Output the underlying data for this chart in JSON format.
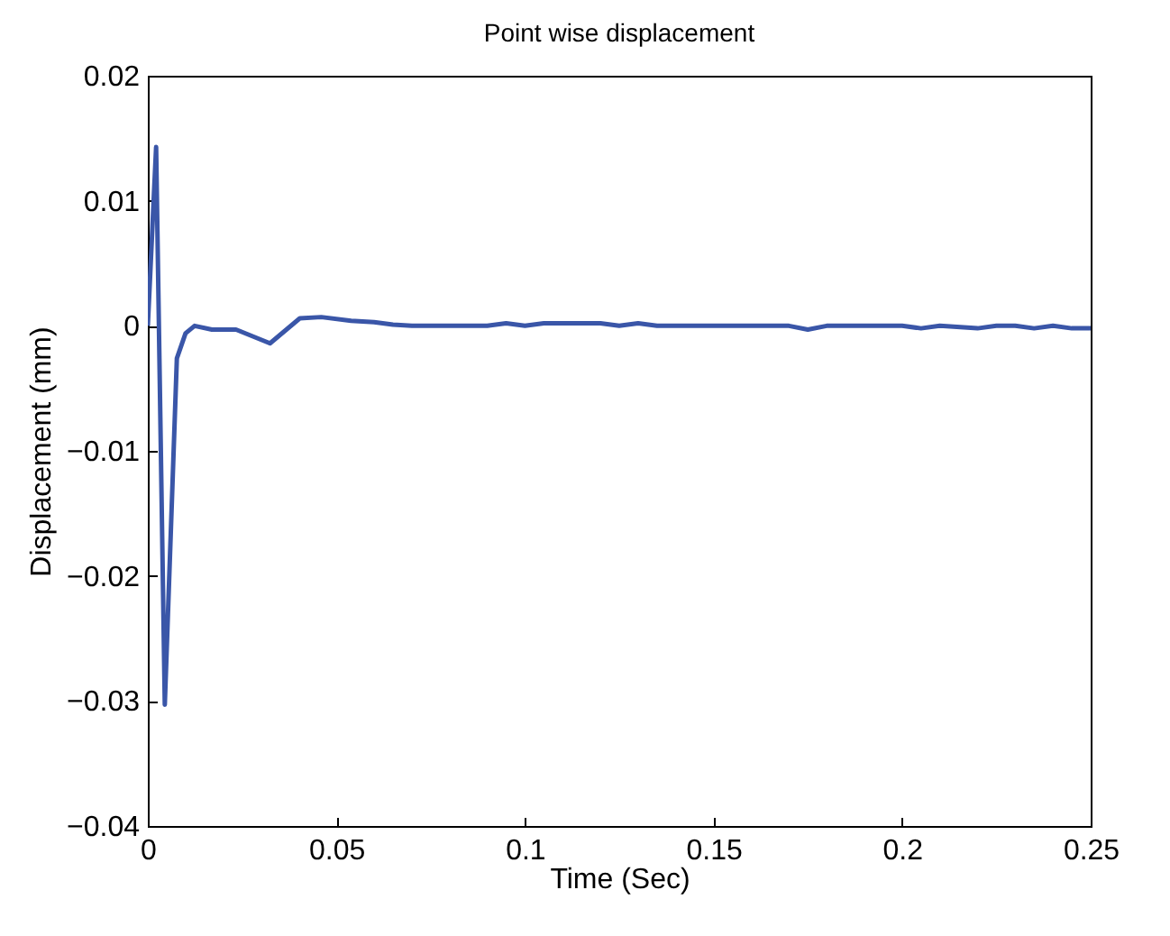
{
  "chart_data": {
    "type": "line",
    "title": "Point wise displacement",
    "xlabel": "Time (Sec)",
    "ylabel": "Displacement  (mm)",
    "x": [
      0,
      0.0022,
      0.0045,
      0.0077,
      0.01,
      0.0124,
      0.017,
      0.0234,
      0.0324,
      0.0403,
      0.046,
      0.0539,
      0.06,
      0.065,
      0.07,
      0.09,
      0.095,
      0.1,
      0.105,
      0.11,
      0.12,
      0.125,
      0.13,
      0.135,
      0.14,
      0.15,
      0.17,
      0.175,
      0.18,
      0.19,
      0.2,
      0.205,
      0.21,
      0.22,
      0.225,
      0.23,
      0.235,
      0.24,
      0.245,
      0.25
    ],
    "series": [
      {
        "color": "#3a56a8",
        "values": [
          0,
          0.0143,
          -0.0303,
          -0.0026,
          -0.0006,
          0,
          -0.0003,
          -0.0003,
          -0.0014,
          0.0006,
          0.0007,
          0.0004,
          0.0003,
          0.0001,
          0,
          0,
          0.0002,
          0,
          0.0002,
          0.0002,
          0.0002,
          0,
          0.0002,
          0,
          0,
          0,
          0,
          -0.0003,
          0,
          0,
          0,
          -0.0002,
          0,
          -0.0002,
          0,
          0,
          -0.0002,
          0,
          -0.0002,
          -0.0002
        ]
      }
    ],
    "xlim": [
      0,
      0.25
    ],
    "ylim": [
      -0.04,
      0.02
    ],
    "xticks": [
      {
        "value": 0,
        "label": "0"
      },
      0.05,
      {
        "value": 0.1,
        "label": "0.1"
      },
      0.15,
      {
        "value": 0.2,
        "label": "0.2"
      },
      0.25
    ],
    "yticks": [
      -0.04,
      -0.03,
      -0.02,
      -0.01,
      {
        "value": 0,
        "label": "0"
      },
      0.01,
      0.02
    ],
    "grid": false,
    "marker": "none",
    "line_style": "solid"
  }
}
